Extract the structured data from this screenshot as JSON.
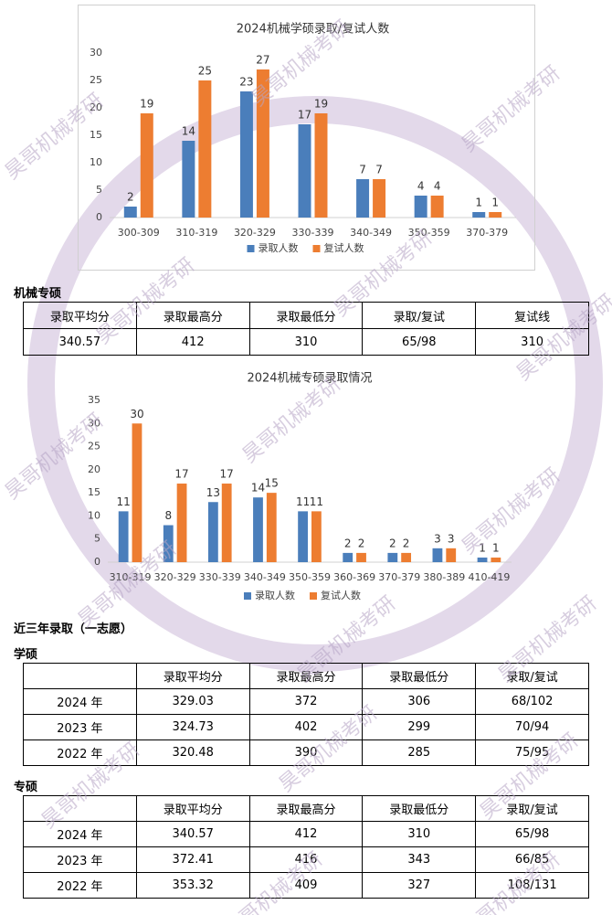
{
  "chart_data": [
    {
      "type": "bar",
      "title": "2024机械学硕录取/复试人数",
      "categories": [
        "300-309",
        "310-319",
        "320-329",
        "330-339",
        "340-349",
        "350-359",
        "370-379"
      ],
      "series": [
        {
          "name": "录取人数",
          "color": "#4a7ebb",
          "values": [
            2,
            14,
            23,
            17,
            7,
            4,
            1
          ]
        },
        {
          "name": "复试人数",
          "color": "#ed7d31",
          "values": [
            19,
            25,
            27,
            19,
            7,
            4,
            1
          ]
        }
      ],
      "ylim": [
        0,
        30
      ],
      "yticks": [
        0,
        5,
        10,
        15,
        20,
        25,
        30
      ],
      "legend": "bottom"
    },
    {
      "type": "bar",
      "title": "2024机械专硕录取情况",
      "categories": [
        "310-319",
        "320-329",
        "330-339",
        "340-349",
        "350-359",
        "360-369",
        "370-379",
        "380-389",
        "410-419"
      ],
      "series": [
        {
          "name": "录取人数",
          "color": "#4a7ebb",
          "values": [
            11,
            8,
            13,
            14,
            11,
            2,
            2,
            3,
            1
          ]
        },
        {
          "name": "复试人数",
          "color": "#ed7d31",
          "values": [
            30,
            17,
            17,
            15,
            11,
            2,
            2,
            3,
            1
          ]
        }
      ],
      "ylim": [
        0,
        35
      ],
      "yticks": [
        0,
        5,
        10,
        15,
        20,
        25,
        30,
        35
      ],
      "legend": "bottom"
    }
  ],
  "section_1": {
    "title": "机械专硕",
    "table": {
      "header": [
        "录取平均分",
        "录取最高分",
        "录取最低分",
        "录取/复试",
        "复试线"
      ],
      "rows": [
        [
          "340.57",
          "412",
          "310",
          "65/98",
          "310"
        ]
      ]
    }
  },
  "section_2": {
    "title": "近三年录取（一志愿）",
    "tables": [
      {
        "title": "学硕",
        "header": [
          "录取平均分",
          "录取最高分",
          "录取最低分",
          "录取/复试"
        ],
        "rows": [
          [
            "2024 年",
            "329.03",
            "372",
            "306",
            "68/102"
          ],
          [
            "2023 年",
            "324.73",
            "402",
            "299",
            "70/94"
          ],
          [
            "2022 年",
            "320.48",
            "390",
            "285",
            "75/95"
          ]
        ]
      },
      {
        "title": "专硕",
        "header": [
          "录取平均分",
          "录取最高分",
          "录取最低分",
          "录取/复试"
        ],
        "rows": [
          [
            "2024 年",
            "340.57",
            "412",
            "310",
            "65/98"
          ],
          [
            "2023 年",
            "372.41",
            "416",
            "343",
            "66/85"
          ],
          [
            "2022 年",
            "353.32",
            "409",
            "327",
            "108/131"
          ]
        ]
      }
    ]
  },
  "watermark": "昊哥机械考研"
}
